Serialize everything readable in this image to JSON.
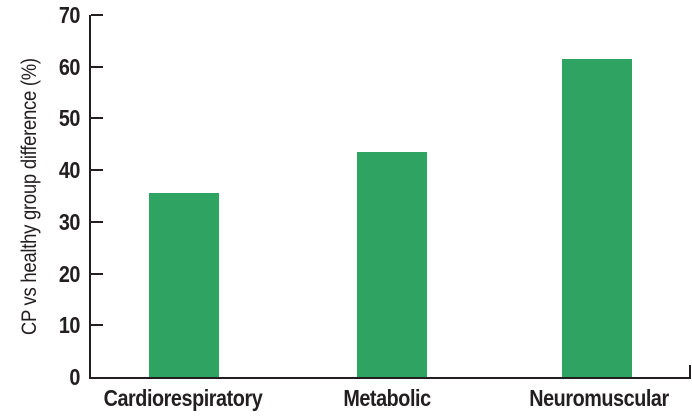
{
  "chart_data": {
    "type": "bar",
    "title": "",
    "ylabel": "CP vs healthy group difference (%)",
    "xlabel": "",
    "categories": [
      "Cardiorespiratory",
      "Metabolic",
      "Neuromuscular"
    ],
    "values": [
      35.5,
      43.5,
      61.5
    ],
    "series": [
      {
        "name": "CP vs healthy group difference (%)",
        "values": [
          35.5,
          43.5,
          61.5
        ]
      }
    ],
    "ylim": [
      0,
      70
    ],
    "ytick_step": 10,
    "yticks": [
      70,
      60,
      50,
      40,
      30,
      20,
      10,
      0
    ],
    "grid": false,
    "legend_position": "none",
    "bar_color": "#2FA462",
    "axis_color": "#231F20",
    "text_color": "#231F20",
    "background_color": "#FFFFFF"
  }
}
